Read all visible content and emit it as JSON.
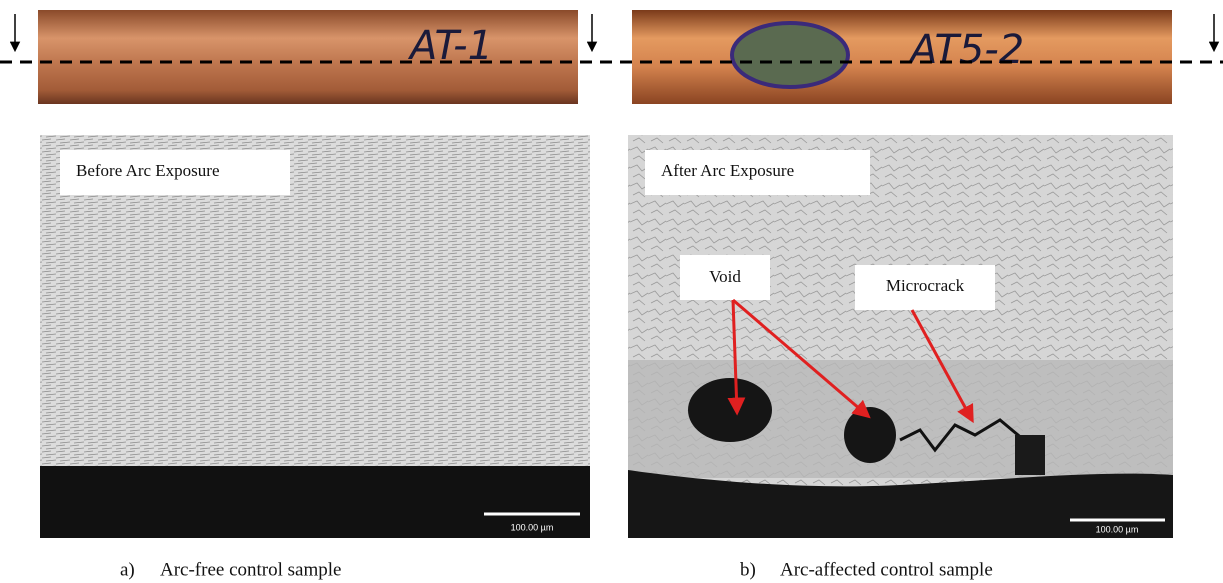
{
  "panels": [
    {
      "sample_tag": "AT-1",
      "image_label": "Before Arc Exposure",
      "scale_bar": "100.00 µm",
      "caption_letter": "a)",
      "caption": "Arc-free control sample"
    },
    {
      "sample_tag": "AT5-2",
      "image_label": "After Arc Exposure",
      "scale_bar": "100.00 µm",
      "caption_letter": "b)",
      "caption": "Arc-affected control sample",
      "annotations": [
        "Void",
        "Microcrack"
      ]
    }
  ]
}
